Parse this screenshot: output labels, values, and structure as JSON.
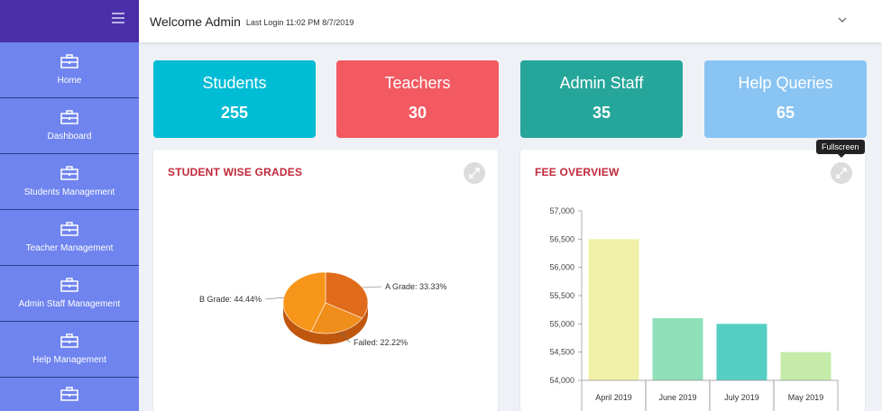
{
  "sidebar": {
    "items": [
      {
        "label": "Home",
        "icon": "briefcase-icon"
      },
      {
        "label": "Dashboard",
        "icon": "briefcase-icon"
      },
      {
        "label": "Students Management",
        "icon": "briefcase-icon"
      },
      {
        "label": "Teacher Management",
        "icon": "briefcase-icon"
      },
      {
        "label": "Admin Staff Management",
        "icon": "briefcase-icon"
      },
      {
        "label": "Help Management",
        "icon": "briefcase-icon"
      }
    ]
  },
  "header": {
    "welcome": "Welcome Admin",
    "last_login": "Last Login 11:02 PM 8/7/2019"
  },
  "stats": [
    {
      "title": "Students",
      "value": "255",
      "color": "#00bcd4"
    },
    {
      "title": "Teachers",
      "value": "30",
      "color": "#f25961"
    },
    {
      "title": "Admin Staff",
      "value": "35",
      "color": "#26a69a"
    },
    {
      "title": "Help Queries",
      "value": "65",
      "color": "#8ac4f3"
    }
  ],
  "grades_panel": {
    "title": "STUDENT WISE GRADES"
  },
  "fee_panel": {
    "title": "FEE OVERVIEW",
    "tooltip": "Fullscreen"
  },
  "chart_data": [
    {
      "type": "pie",
      "title": "",
      "slices": [
        {
          "label": "A Grade: 33.33%",
          "value": 33.33,
          "color": "#e06b1a"
        },
        {
          "label": "Failed: 22.22%",
          "value": 22.22,
          "color": "#f08e1c"
        },
        {
          "label": "B Grade: 44.44%",
          "value": 44.44,
          "color": "#f7951a"
        }
      ]
    },
    {
      "type": "bar",
      "title": "",
      "categories": [
        "April 2019",
        "June 2019",
        "July 2019",
        "May 2019"
      ],
      "values": [
        56500,
        55100,
        55000,
        54500
      ],
      "colors": [
        "#f0f0a8",
        "#8ee0b8",
        "#55cfc4",
        "#c4eca8"
      ],
      "ylim": [
        54000,
        57000
      ],
      "yticks": [
        "54,000",
        "54,500",
        "55,000",
        "55,500",
        "56,000",
        "56,500",
        "57,000"
      ],
      "ytick_values": [
        54000,
        54500,
        55000,
        55500,
        56000,
        56500,
        57000
      ]
    }
  ]
}
